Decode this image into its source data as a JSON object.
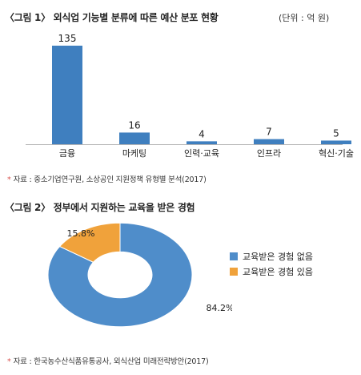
{
  "figure1": {
    "title": "〈그림 1〉 외식업 기능별 분류에 따른 예산 분포 현황",
    "unit": "(단위 : 억 원)",
    "source": "자료 : 중소기업연구원, 소상공인 지원정책 유형별 분석(2017)"
  },
  "figure2": {
    "title": "〈그림 2〉 정부에서 지원하는 교육을 받은 경험",
    "source": "자료 : 한국농수산식품유통공사, 외식산업 미래전략방안(2017)"
  },
  "source_mark": "*",
  "chart_data": [
    {
      "type": "bar",
      "title": "〈그림 1〉 외식업 기능별 분류에 따른 예산 분포 현황",
      "unit": "(단위 : 억 원)",
      "categories": [
        "금융",
        "마케팅",
        "인력·교육",
        "인프라",
        "혁신·기술"
      ],
      "values": [
        135,
        16,
        4,
        7,
        5
      ],
      "color": "#3f7fbf",
      "ylim": [
        0,
        135
      ],
      "grid": false,
      "data_labels": [
        "135",
        "16",
        "4",
        "7",
        "5"
      ]
    },
    {
      "type": "pie",
      "donut": true,
      "title": "〈그림 2〉 정부에서 지원하는 교육을 받은 경험",
      "categories": [
        "교육받은 경험 없음",
        "교육받은 경험 있음"
      ],
      "values": [
        84.2,
        15.8
      ],
      "labels": [
        "84.2%",
        "15.8%"
      ],
      "colors": [
        "#4f8dca",
        "#f0a23b"
      ],
      "legend": "right"
    }
  ]
}
